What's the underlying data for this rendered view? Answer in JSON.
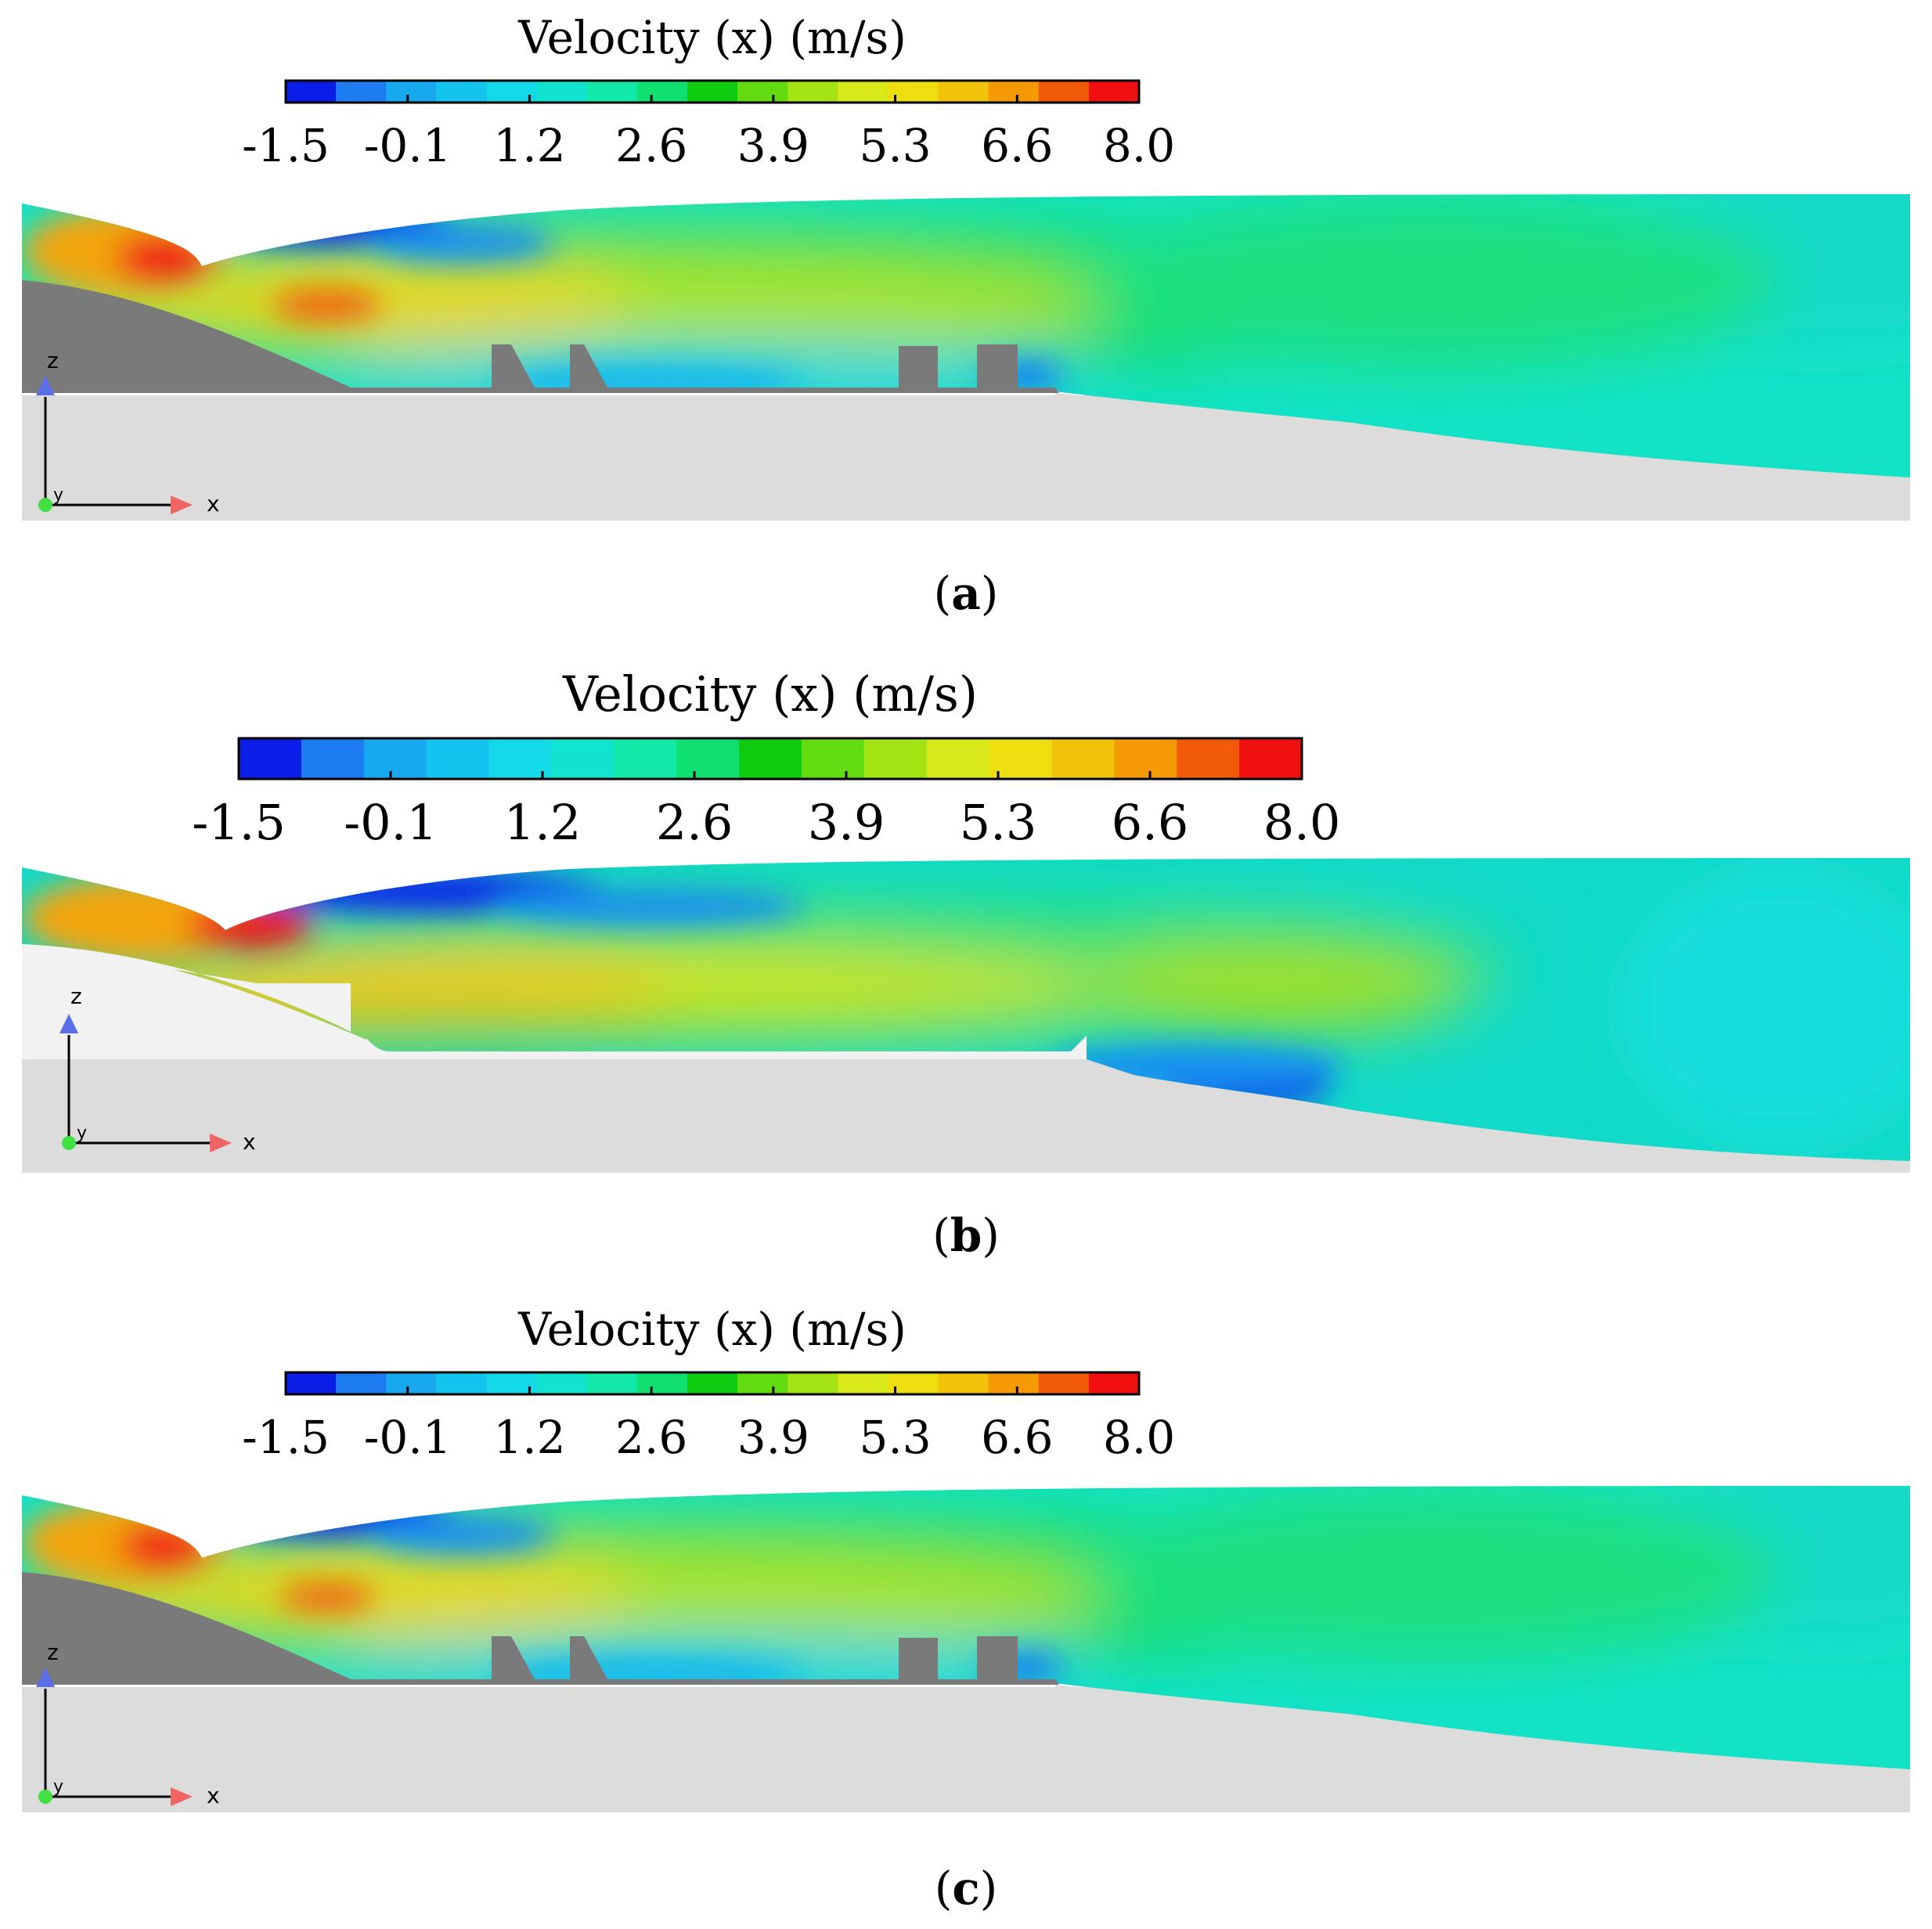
{
  "colorbar": {
    "title": "Velocity (x) (m/s)",
    "ticks": [
      "-1.5",
      "-0.1",
      "1.2",
      "2.6",
      "3.9",
      "5.3",
      "6.6",
      "8.0"
    ],
    "colors": [
      "#0b1ee8",
      "#1c7cf0",
      "#17a8f0",
      "#12c4ee",
      "#12d8e8",
      "#10e4d0",
      "#12e8a8",
      "#10e070",
      "#10cc10",
      "#62dc10",
      "#a4e414",
      "#d8e818",
      "#eede10",
      "#f2c20a",
      "#f49a04",
      "#f05a08",
      "#f01010"
    ]
  },
  "panels": [
    {
      "id": "a",
      "caption_letter": "a",
      "axis_x": "x",
      "axis_z": "z",
      "axis_y": "y"
    },
    {
      "id": "b",
      "caption_letter": "b",
      "axis_x": "x",
      "axis_z": "z",
      "axis_y": "y"
    },
    {
      "id": "c",
      "caption_letter": "c",
      "axis_x": "x",
      "axis_z": "z",
      "axis_y": "y"
    }
  ],
  "caption_open": "(",
  "caption_close": ")"
}
